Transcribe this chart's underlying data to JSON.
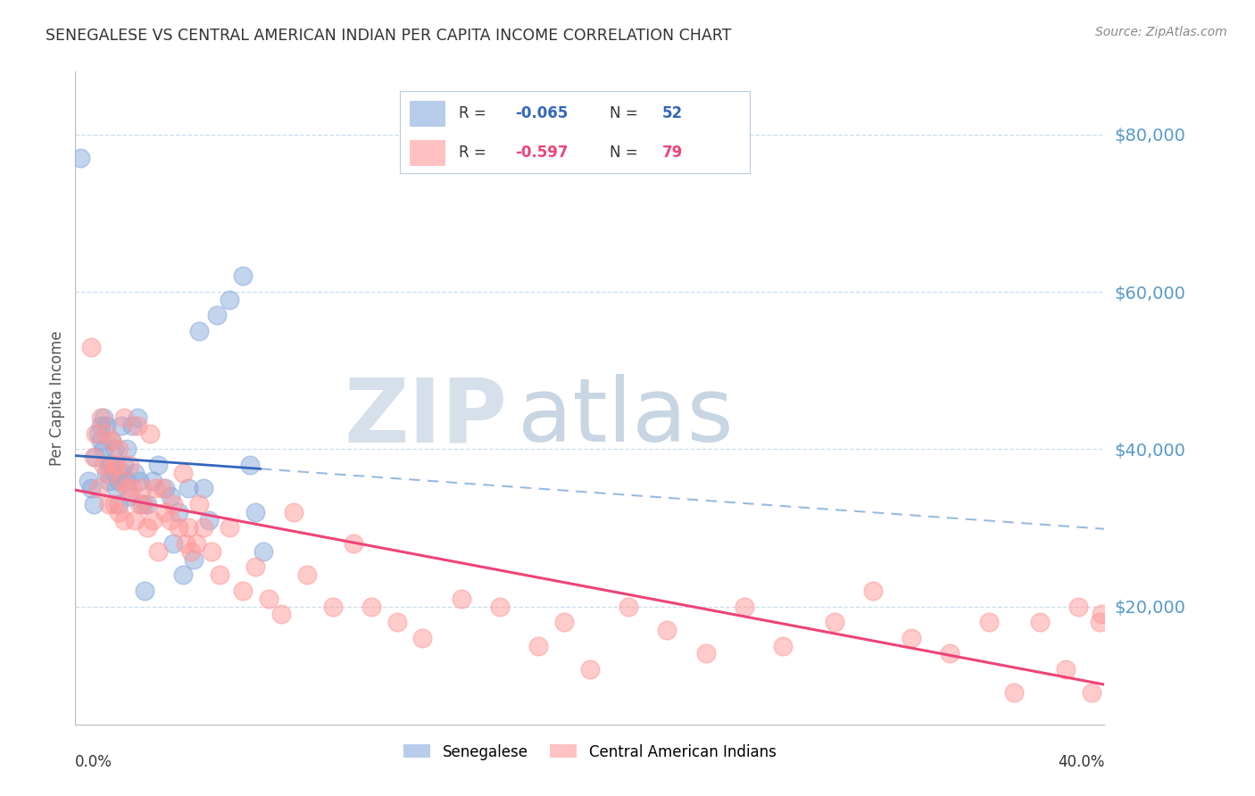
{
  "title": "SENEGALESE VS CENTRAL AMERICAN INDIAN PER CAPITA INCOME CORRELATION CHART",
  "source": "Source: ZipAtlas.com",
  "ylabel": "Per Capita Income",
  "ytick_labels": [
    "$20,000",
    "$40,000",
    "$60,000",
    "$80,000"
  ],
  "ytick_values": [
    20000,
    40000,
    60000,
    80000
  ],
  "ylim": [
    5000,
    88000
  ],
  "xlim": [
    0.0,
    0.4
  ],
  "blue_color": "#88AADD",
  "pink_color": "#FF9999",
  "trendline_blue_solid_color": "#3366BB",
  "trendline_blue_dashed_color": "#99BBDD",
  "trendline_pink_color": "#EE4477",
  "grid_color": "#CCDDEE",
  "ytick_color": "#5599CC",
  "watermark_zip": "ZIP",
  "watermark_atlas": "atlas",
  "watermark_color_zip": "#BBCCDD",
  "watermark_color_atlas": "#7799BB",
  "legend_box_color": "#DDEEEE",
  "blue_scatter_x": [
    0.002,
    0.005,
    0.006,
    0.007,
    0.008,
    0.009,
    0.01,
    0.01,
    0.011,
    0.011,
    0.012,
    0.012,
    0.013,
    0.013,
    0.014,
    0.014,
    0.015,
    0.015,
    0.016,
    0.017,
    0.017,
    0.018,
    0.018,
    0.019,
    0.02,
    0.02,
    0.021,
    0.022,
    0.023,
    0.024,
    0.025,
    0.026,
    0.027,
    0.028,
    0.03,
    0.032,
    0.035,
    0.037,
    0.038,
    0.04,
    0.042,
    0.044,
    0.046,
    0.048,
    0.05,
    0.052,
    0.055,
    0.06,
    0.065,
    0.068,
    0.07,
    0.073
  ],
  "blue_scatter_y": [
    77000,
    36000,
    35000,
    33000,
    39000,
    42000,
    43000,
    41000,
    44000,
    40000,
    37000,
    43000,
    38000,
    36000,
    41000,
    38000,
    37000,
    40000,
    35000,
    36000,
    33000,
    43000,
    37000,
    38000,
    36000,
    40000,
    34000,
    43000,
    37000,
    44000,
    36000,
    33000,
    22000,
    33000,
    36000,
    38000,
    35000,
    34000,
    28000,
    32000,
    24000,
    35000,
    26000,
    55000,
    35000,
    31000,
    57000,
    59000,
    62000,
    38000,
    32000,
    27000
  ],
  "pink_scatter_x": [
    0.006,
    0.007,
    0.008,
    0.009,
    0.01,
    0.011,
    0.012,
    0.013,
    0.013,
    0.014,
    0.015,
    0.015,
    0.016,
    0.017,
    0.017,
    0.018,
    0.019,
    0.019,
    0.02,
    0.021,
    0.022,
    0.023,
    0.024,
    0.025,
    0.026,
    0.027,
    0.028,
    0.029,
    0.03,
    0.031,
    0.032,
    0.034,
    0.035,
    0.037,
    0.038,
    0.04,
    0.042,
    0.043,
    0.044,
    0.045,
    0.047,
    0.048,
    0.05,
    0.053,
    0.056,
    0.06,
    0.065,
    0.07,
    0.075,
    0.08,
    0.085,
    0.09,
    0.1,
    0.108,
    0.115,
    0.125,
    0.135,
    0.15,
    0.165,
    0.18,
    0.19,
    0.2,
    0.215,
    0.23,
    0.245,
    0.26,
    0.275,
    0.295,
    0.31,
    0.325,
    0.34,
    0.355,
    0.365,
    0.375,
    0.385,
    0.39,
    0.395,
    0.398,
    0.399
  ],
  "pink_scatter_y": [
    53000,
    39000,
    42000,
    35000,
    44000,
    38000,
    42000,
    37000,
    33000,
    41000,
    38000,
    33000,
    38000,
    32000,
    40000,
    36000,
    44000,
    31000,
    35000,
    38000,
    35000,
    31000,
    43000,
    33000,
    35000,
    33000,
    30000,
    42000,
    31000,
    35000,
    27000,
    35000,
    32000,
    31000,
    33000,
    30000,
    37000,
    28000,
    30000,
    27000,
    28000,
    33000,
    30000,
    27000,
    24000,
    30000,
    22000,
    25000,
    21000,
    19000,
    32000,
    24000,
    20000,
    28000,
    20000,
    18000,
    16000,
    21000,
    20000,
    15000,
    18000,
    12000,
    20000,
    17000,
    14000,
    20000,
    15000,
    18000,
    22000,
    16000,
    14000,
    18000,
    9000,
    18000,
    12000,
    20000,
    9000,
    18000,
    19000
  ]
}
